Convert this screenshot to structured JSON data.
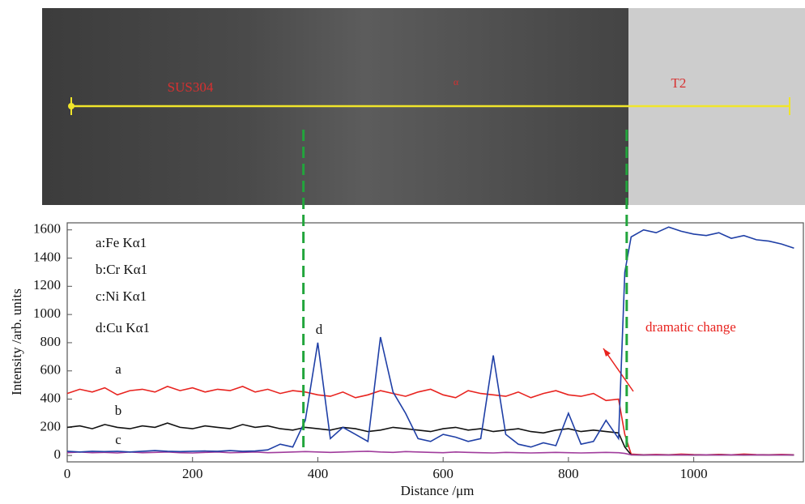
{
  "micrograph": {
    "labels": [
      "SUS304",
      "α",
      "T2"
    ]
  },
  "chart_data": {
    "type": "line",
    "x_label": "Distance /μm",
    "y_label": "Intensity /arb. units",
    "x": [
      0,
      20,
      40,
      60,
      80,
      100,
      120,
      140,
      160,
      180,
      200,
      220,
      240,
      260,
      280,
      300,
      320,
      340,
      360,
      380,
      400,
      420,
      440,
      460,
      480,
      500,
      520,
      540,
      560,
      580,
      600,
      620,
      640,
      660,
      680,
      700,
      720,
      740,
      760,
      780,
      800,
      820,
      840,
      860,
      880,
      890,
      900,
      920,
      940,
      960,
      980,
      1000,
      1020,
      1040,
      1060,
      1080,
      1100,
      1120,
      1140,
      1160
    ],
    "series": [
      {
        "name": "a:Fe Kα1",
        "label": "a",
        "color": "#e8231f",
        "values": [
          440,
          470,
          450,
          480,
          430,
          460,
          470,
          450,
          490,
          460,
          480,
          450,
          470,
          460,
          490,
          450,
          470,
          440,
          460,
          450,
          430,
          420,
          450,
          410,
          430,
          460,
          440,
          420,
          450,
          470,
          430,
          410,
          460,
          440,
          430,
          420,
          450,
          410,
          440,
          460,
          430,
          420,
          440,
          390,
          400,
          150,
          10,
          5,
          8,
          5,
          10,
          6,
          5,
          8,
          5,
          10,
          6,
          5,
          8,
          5
        ]
      },
      {
        "name": "b:Cr Kα1",
        "label": "b",
        "color": "#111111",
        "values": [
          200,
          210,
          190,
          220,
          200,
          190,
          210,
          200,
          230,
          200,
          190,
          210,
          200,
          190,
          220,
          200,
          210,
          190,
          180,
          200,
          190,
          180,
          200,
          190,
          170,
          180,
          200,
          190,
          180,
          170,
          190,
          200,
          180,
          190,
          170,
          180,
          190,
          170,
          160,
          180,
          190,
          170,
          180,
          170,
          160,
          60,
          5,
          3,
          5,
          4,
          5,
          3,
          5,
          4,
          5,
          3,
          5,
          4,
          5,
          3
        ]
      },
      {
        "name": "c:Ni Kα1",
        "label": "c",
        "color": "#a03c9c",
        "values": [
          20,
          25,
          20,
          22,
          18,
          25,
          20,
          22,
          25,
          20,
          18,
          22,
          25,
          20,
          22,
          25,
          20,
          22,
          25,
          28,
          25,
          22,
          25,
          28,
          30,
          25,
          22,
          28,
          25,
          22,
          20,
          25,
          22,
          20,
          18,
          22,
          20,
          18,
          20,
          22,
          20,
          18,
          20,
          22,
          20,
          15,
          5,
          4,
          5,
          3,
          5,
          4,
          5,
          3,
          5,
          4,
          5,
          3,
          5,
          4
        ]
      },
      {
        "name": "d:Cu Kα1",
        "label": "d",
        "color": "#1f3fa6",
        "values": [
          30,
          25,
          30,
          28,
          30,
          25,
          30,
          35,
          30,
          28,
          30,
          32,
          30,
          35,
          30,
          32,
          40,
          80,
          60,
          250,
          800,
          120,
          200,
          150,
          100,
          840,
          450,
          300,
          120,
          100,
          150,
          130,
          100,
          120,
          710,
          150,
          80,
          60,
          90,
          70,
          300,
          80,
          100,
          250,
          120,
          1300,
          1550,
          1600,
          1580,
          1620,
          1590,
          1570,
          1560,
          1580,
          1540,
          1560,
          1530,
          1520,
          1500,
          1470
        ]
      }
    ],
    "boundaries": [
      377,
      893
    ],
    "boundary_color": "#22a53c",
    "annotation": "dramatic change",
    "annotation_color": "#e8231f",
    "xlim": [
      0,
      1175
    ],
    "ylim": [
      -45,
      1650
    ],
    "xticks": [
      0,
      200,
      400,
      600,
      800,
      1000
    ],
    "yticks": [
      0,
      200,
      400,
      600,
      800,
      1000,
      1200,
      1400,
      1600
    ]
  }
}
